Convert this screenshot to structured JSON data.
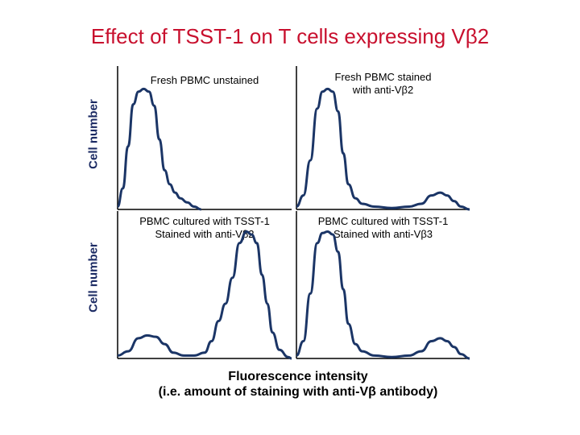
{
  "title": "Effect of TSST-1 on T cells expressing Vβ2",
  "xlabel_line1": "Fluorescence intensity",
  "xlabel_line2": "(i.e. amount of staining with anti-Vβ antibody)",
  "ylabel_top": "Cell number",
  "ylabel_bottom": "Cell number",
  "colors": {
    "title": "#c8102e",
    "curve": "#1b3566",
    "axis": "#000000"
  },
  "chart_data": [
    {
      "type": "line",
      "panel": "top-left",
      "title_lines": [
        "Fresh PBMC unstained"
      ],
      "xlabel": "Fluorescence intensity",
      "ylabel": "Cell number",
      "xlim": [
        0,
        100
      ],
      "ylim": [
        0,
        100
      ],
      "x": [
        0,
        3,
        6,
        9,
        12,
        15,
        18,
        21,
        24,
        27,
        30,
        33,
        36,
        40,
        44,
        48
      ],
      "y": [
        2,
        15,
        45,
        75,
        84,
        86,
        84,
        74,
        50,
        28,
        18,
        12,
        8,
        5,
        2,
        0
      ]
    },
    {
      "type": "line",
      "panel": "top-right",
      "title_lines": [
        "Fresh PBMC stained",
        "with anti-Vβ2"
      ],
      "xlabel": "Fluorescence intensity",
      "ylabel": "Cell number",
      "xlim": [
        0,
        100
      ],
      "ylim": [
        0,
        100
      ],
      "x": [
        0,
        4,
        8,
        12,
        15,
        18,
        21,
        24,
        27,
        30,
        34,
        38,
        45,
        55,
        65,
        72,
        78,
        83,
        87,
        91,
        95,
        100
      ],
      "y": [
        2,
        10,
        35,
        72,
        84,
        86,
        84,
        70,
        40,
        18,
        8,
        4,
        2,
        1,
        2,
        4,
        10,
        12,
        10,
        6,
        2,
        0
      ]
    },
    {
      "type": "line",
      "panel": "bottom-left",
      "title_lines": [
        "PBMC cultured with TSST-1",
        "Stained with anti-Vβ2"
      ],
      "xlabel": "Fluorescence intensity",
      "ylabel": "Cell number",
      "xlim": [
        0,
        100
      ],
      "ylim": [
        0,
        100
      ],
      "x": [
        0,
        6,
        12,
        17,
        22,
        27,
        32,
        38,
        44,
        50,
        54,
        58,
        62,
        66,
        70,
        74,
        77,
        80,
        83,
        86,
        89,
        93,
        98,
        100
      ],
      "y": [
        2,
        5,
        14,
        16,
        15,
        10,
        4,
        2,
        2,
        4,
        12,
        26,
        38,
        56,
        80,
        88,
        86,
        80,
        58,
        38,
        18,
        6,
        1,
        0
      ]
    },
    {
      "type": "line",
      "panel": "bottom-right",
      "title_lines": [
        "PBMC cultured with TSST-1",
        "Stained with anti-Vβ3"
      ],
      "xlabel": "Fluorescence intensity",
      "ylabel": "Cell number",
      "xlim": [
        0,
        100
      ],
      "ylim": [
        0,
        100
      ],
      "x": [
        0,
        4,
        8,
        12,
        15,
        18,
        21,
        24,
        27,
        30,
        34,
        38,
        45,
        55,
        65,
        72,
        78,
        83,
        87,
        91,
        95,
        100
      ],
      "y": [
        2,
        12,
        45,
        80,
        87,
        88,
        86,
        74,
        48,
        24,
        10,
        5,
        2,
        1,
        2,
        5,
        12,
        14,
        12,
        8,
        3,
        0
      ]
    }
  ]
}
